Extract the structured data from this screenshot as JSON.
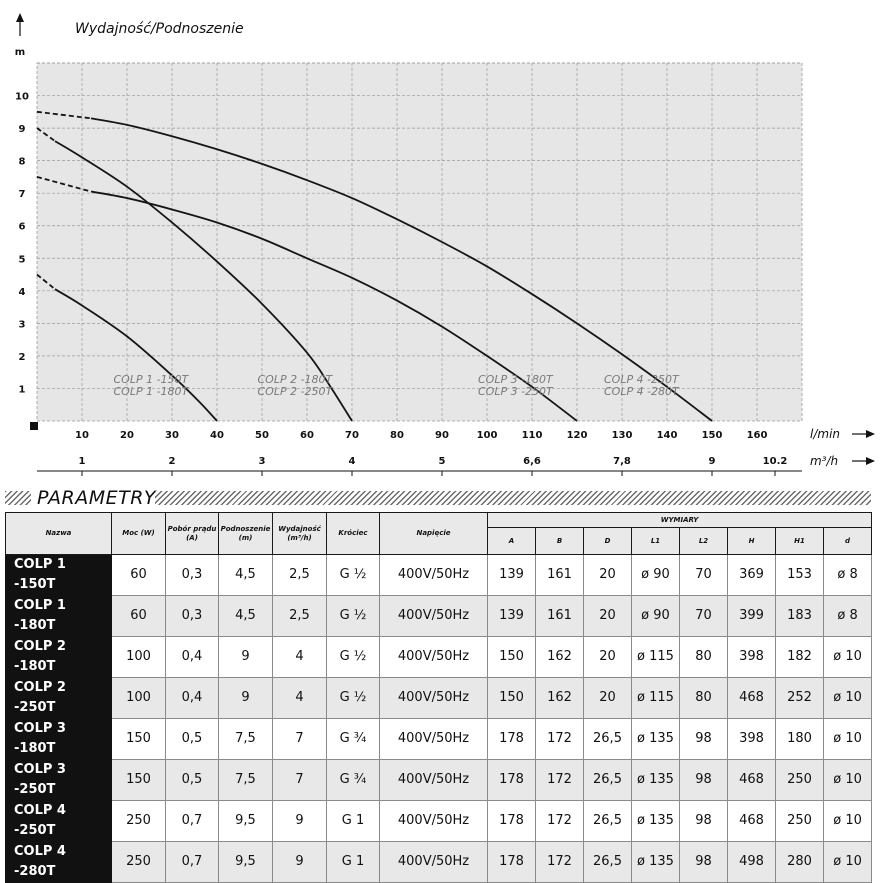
{
  "chart_data": {
    "type": "line",
    "title": "Wydajność/Podnoszenie",
    "ylabel": "m",
    "xlabel": "l/min",
    "x2label": "m³/h",
    "ylim": [
      0,
      11
    ],
    "xlim": [
      0,
      170
    ],
    "grid": true,
    "y_ticks": [
      "1",
      "2",
      "3",
      "4",
      "5",
      "6",
      "7",
      "8",
      "9",
      "10"
    ],
    "x_ticks": [
      "10",
      "20",
      "30",
      "40",
      "50",
      "60",
      "70",
      "80",
      "90",
      "100",
      "110",
      "120",
      "130",
      "140",
      "150",
      "160"
    ],
    "x2_ticks": [
      {
        "x": 10,
        "label": "1"
      },
      {
        "x": 30,
        "label": "2"
      },
      {
        "x": 50,
        "label": "3"
      },
      {
        "x": 70,
        "label": "4"
      },
      {
        "x": 90,
        "label": "5"
      },
      {
        "x": 110,
        "label": "6,6"
      },
      {
        "x": 130,
        "label": "7,8"
      },
      {
        "x": 150,
        "label": "9"
      },
      {
        "x": 164,
        "label": "10.2"
      }
    ],
    "series": [
      {
        "group": "1",
        "dashed_to_x": 4,
        "points": [
          [
            0,
            4.5
          ],
          [
            4,
            4.05
          ],
          [
            10,
            3.55
          ],
          [
            20,
            2.6
          ],
          [
            30,
            1.4
          ],
          [
            36,
            0.6
          ],
          [
            40,
            0
          ]
        ]
      },
      {
        "group": "2",
        "dashed_to_x": 4,
        "points": [
          [
            0,
            9.0
          ],
          [
            4,
            8.6
          ],
          [
            10,
            8.1
          ],
          [
            20,
            7.2
          ],
          [
            30,
            6.1
          ],
          [
            40,
            4.9
          ],
          [
            50,
            3.6
          ],
          [
            60,
            2.1
          ],
          [
            65,
            1.1
          ],
          [
            70,
            0
          ]
        ]
      },
      {
        "group": "3",
        "dashed_to_x": 12,
        "points": [
          [
            0,
            7.5
          ],
          [
            12,
            7.05
          ],
          [
            20,
            6.85
          ],
          [
            30,
            6.5
          ],
          [
            40,
            6.1
          ],
          [
            50,
            5.6
          ],
          [
            60,
            5.0
          ],
          [
            70,
            4.4
          ],
          [
            80,
            3.7
          ],
          [
            90,
            2.9
          ],
          [
            100,
            2.0
          ],
          [
            110,
            1.05
          ],
          [
            120,
            0
          ]
        ]
      },
      {
        "group": "4",
        "dashed_to_x": 12,
        "points": [
          [
            0,
            9.5
          ],
          [
            12,
            9.3
          ],
          [
            20,
            9.1
          ],
          [
            30,
            8.75
          ],
          [
            40,
            8.35
          ],
          [
            50,
            7.9
          ],
          [
            60,
            7.4
          ],
          [
            70,
            6.85
          ],
          [
            80,
            6.2
          ],
          [
            90,
            5.5
          ],
          [
            100,
            4.75
          ],
          [
            110,
            3.9
          ],
          [
            120,
            3.0
          ],
          [
            130,
            2.05
          ],
          [
            140,
            1.05
          ],
          [
            150,
            0
          ]
        ]
      }
    ],
    "annotations": [
      {
        "x": 17,
        "lines": [
          "COLP 1 -150T",
          "COLP 1 -180T"
        ]
      },
      {
        "x": 49,
        "lines": [
          "COLP 2 -180T",
          "COLP 2 -250T"
        ]
      },
      {
        "x": 98,
        "lines": [
          "COLP 3 -180T",
          "COLP 3 -250T"
        ]
      },
      {
        "x": 126,
        "lines": [
          "COLP 4 -250T",
          "COLP 4 -280T"
        ]
      }
    ],
    "colors": {
      "grid": "#9a9a9a",
      "bg": "#e6e6e6",
      "curve": "#151515",
      "annotation": "#7a7a7a"
    }
  },
  "parametry": {
    "title": "PARAMETRY",
    "headers": {
      "nazwa": "Nazwa",
      "moc": "Moc (W)",
      "pobor": "Pobór prądu (A)",
      "podnoszenie": "Podnoszenie (m)",
      "wydajnosc": "Wydajność (m³/h)",
      "krociec": "Króciec",
      "napiecie": "Napięcie",
      "wymiary": "WYMIARY",
      "dims": [
        "A",
        "B",
        "D",
        "L1",
        "L2",
        "H",
        "H1",
        "d"
      ]
    },
    "rows": [
      [
        "COLP 1 -150T",
        "60",
        "0,3",
        "4,5",
        "2,5",
        "G ½",
        "400V/50Hz",
        "139",
        "161",
        "20",
        "ø 90",
        "70",
        "369",
        "153",
        "ø 8"
      ],
      [
        "COLP 1 -180T",
        "60",
        "0,3",
        "4,5",
        "2,5",
        "G ½",
        "400V/50Hz",
        "139",
        "161",
        "20",
        "ø 90",
        "70",
        "399",
        "183",
        "ø 8"
      ],
      [
        "COLP 2 -180T",
        "100",
        "0,4",
        "9",
        "4",
        "G ½",
        "400V/50Hz",
        "150",
        "162",
        "20",
        "ø 115",
        "80",
        "398",
        "182",
        "ø 10"
      ],
      [
        "COLP 2 -250T",
        "100",
        "0,4",
        "9",
        "4",
        "G ½",
        "400V/50Hz",
        "150",
        "162",
        "20",
        "ø 115",
        "80",
        "468",
        "252",
        "ø 10"
      ],
      [
        "COLP 3 -180T",
        "150",
        "0,5",
        "7,5",
        "7",
        "G ¾",
        "400V/50Hz",
        "178",
        "172",
        "26,5",
        "ø 135",
        "98",
        "398",
        "180",
        "ø 10"
      ],
      [
        "COLP 3 -250T",
        "150",
        "0,5",
        "7,5",
        "7",
        "G ¾",
        "400V/50Hz",
        "178",
        "172",
        "26,5",
        "ø 135",
        "98",
        "468",
        "250",
        "ø 10"
      ],
      [
        "COLP 4 -250T",
        "250",
        "0,7",
        "9,5",
        "9",
        "G 1",
        "400V/50Hz",
        "178",
        "172",
        "26,5",
        "ø 135",
        "98",
        "468",
        "250",
        "ø 10"
      ],
      [
        "COLP 4 -280T",
        "250",
        "0,7",
        "9,5",
        "9",
        "G 1",
        "400V/50Hz",
        "178",
        "172",
        "26,5",
        "ø 135",
        "98",
        "498",
        "280",
        "ø 10"
      ]
    ]
  }
}
